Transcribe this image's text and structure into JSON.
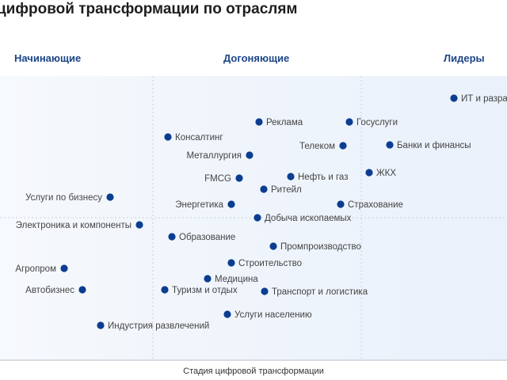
{
  "title": "цифровой трансформации по отраслям",
  "colors": {
    "dot": "#0b3d91",
    "header": "#1c4587",
    "divider": "#c8d0dc",
    "axis": "#b0b8c4"
  },
  "chart_data": {
    "type": "scatter",
    "title": "цифровой трансформации по отраслям",
    "xlabel": "Стадия цифровой трансформации",
    "ylabel": "",
    "xlim": [
      0,
      640
    ],
    "ylim": [
      96,
      455
    ],
    "grid": true,
    "stages": [
      "Начинающие",
      "Догоняющие",
      "Лидеры"
    ],
    "points": [
      {
        "name": "ИТ и разработка",
        "x": 573,
        "y": 124,
        "label": "right"
      },
      {
        "name": "Реклама",
        "x": 327,
        "y": 154,
        "label": "right"
      },
      {
        "name": "Госуслуги",
        "x": 441,
        "y": 154,
        "label": "right"
      },
      {
        "name": "Консалтинг",
        "x": 212,
        "y": 173,
        "label": "right"
      },
      {
        "name": "Телеком",
        "x": 433,
        "y": 184,
        "label": "left"
      },
      {
        "name": "Банки и финансы",
        "x": 492,
        "y": 183,
        "label": "right"
      },
      {
        "name": "Металлургия",
        "x": 315,
        "y": 196,
        "label": "left"
      },
      {
        "name": "ЖКХ",
        "x": 466,
        "y": 218,
        "label": "right"
      },
      {
        "name": "FMCG",
        "x": 302,
        "y": 225,
        "label": "left"
      },
      {
        "name": "Нефть и газ",
        "x": 367,
        "y": 223,
        "label": "right"
      },
      {
        "name": "Ритейл",
        "x": 333,
        "y": 239,
        "label": "right"
      },
      {
        "name": "Услуги по бизнесу",
        "x": 139,
        "y": 249,
        "label": "left"
      },
      {
        "name": "Энергетика",
        "x": 292,
        "y": 258,
        "label": "left"
      },
      {
        "name": "Страхование",
        "x": 430,
        "y": 258,
        "label": "right"
      },
      {
        "name": "Добыча ископаемых",
        "x": 325,
        "y": 275,
        "label": "right"
      },
      {
        "name": "Электроника и компоненты",
        "x": 176,
        "y": 284,
        "label": "left"
      },
      {
        "name": "Образование",
        "x": 217,
        "y": 299,
        "label": "right"
      },
      {
        "name": "Промпроизводство",
        "x": 345,
        "y": 311,
        "label": "right"
      },
      {
        "name": "Строительство",
        "x": 292,
        "y": 332,
        "label": "right"
      },
      {
        "name": "Агропром",
        "x": 81,
        "y": 339,
        "label": "left"
      },
      {
        "name": "Медицина",
        "x": 262,
        "y": 352,
        "label": "right"
      },
      {
        "name": "Автобизнес",
        "x": 104,
        "y": 366,
        "label": "left"
      },
      {
        "name": "Туризм и отдых",
        "x": 208,
        "y": 366,
        "label": "right"
      },
      {
        "name": "Транспорт и логистика",
        "x": 334,
        "y": 368,
        "label": "right"
      },
      {
        "name": "Услуги населению",
        "x": 287,
        "y": 397,
        "label": "right"
      },
      {
        "name": "Индустрия развлечений",
        "x": 127,
        "y": 411,
        "label": "right"
      }
    ]
  }
}
